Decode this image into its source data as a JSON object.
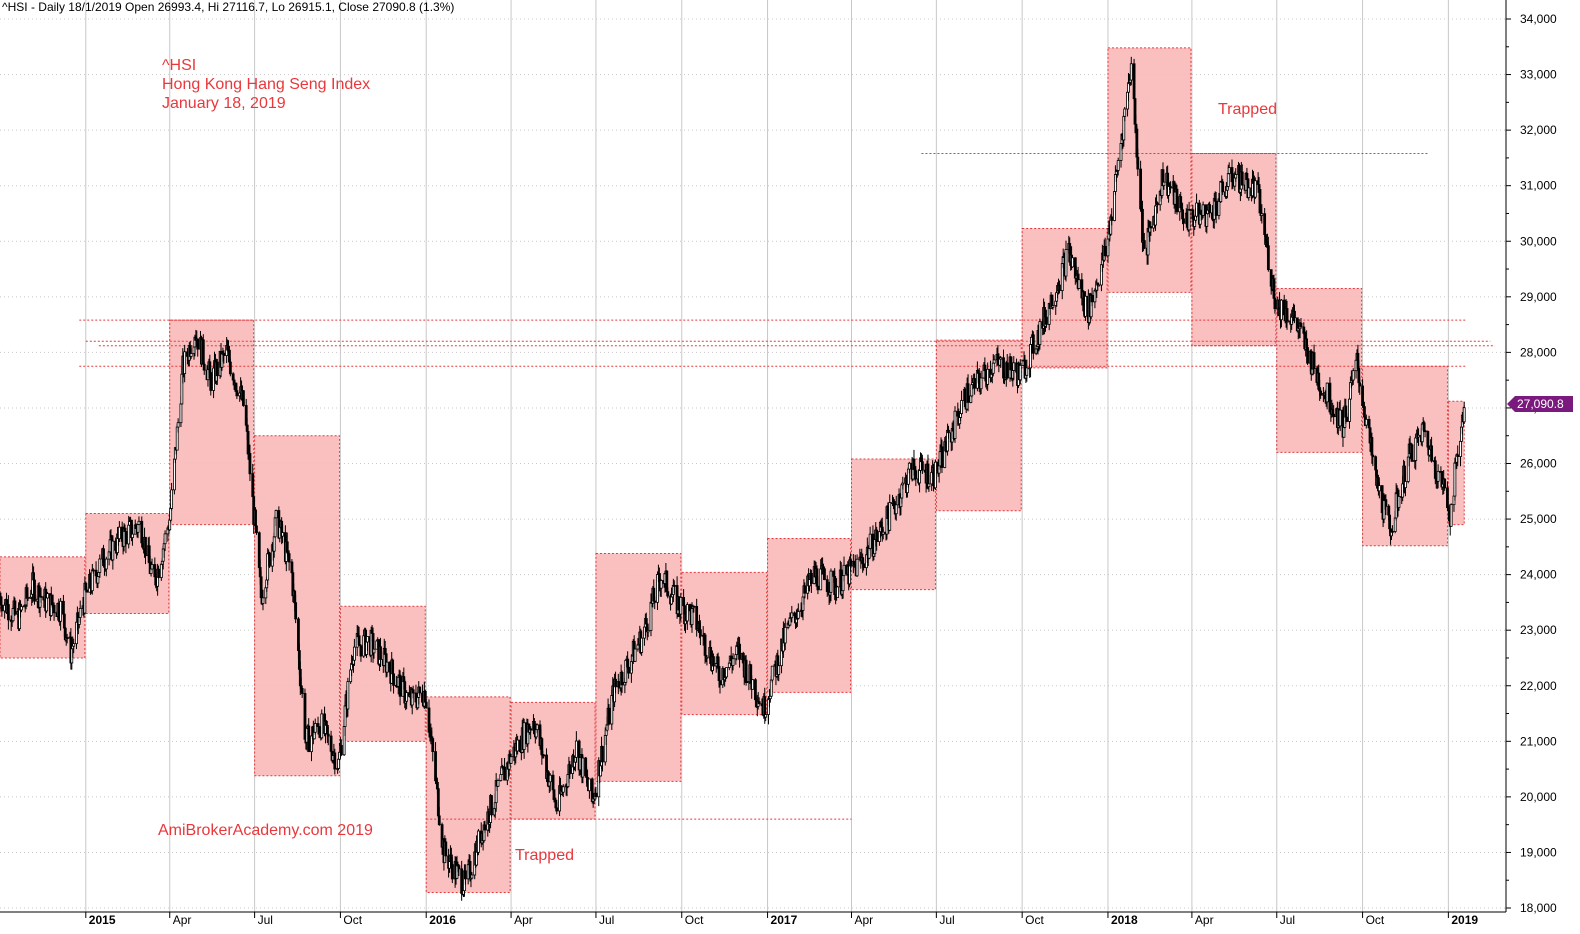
{
  "header": {
    "text": "^HSI - Daily 18/1/2019 Open 26993.4, Hi 27116.7, Lo 26915.1, Close 27090.8 (1.3%)"
  },
  "annotations": {
    "symbol": "^HSI",
    "name": "Hong Kong Hang Seng Index",
    "date": "January 18, 2019",
    "watermark": "AmiBrokerAcademy.com  2019",
    "trapped_top": "Trapped",
    "trapped_bottom": "Trapped"
  },
  "last_price_label": "27,090.8",
  "colors": {
    "box_fill": "#f9b8b8",
    "box_border": "#e8383c",
    "line": "#e8383c",
    "candle": "#000000",
    "grid": "#c8c8c8",
    "price_tag": "#7b1a7e",
    "annotation": "#e8383c"
  },
  "chart_data": {
    "type": "line",
    "subtype": "candlestick-with-range-boxes",
    "ylim": [
      18000,
      34200
    ],
    "y_ticks": [
      "18,000",
      "19,000",
      "20,000",
      "21,000",
      "22,000",
      "23,000",
      "24,000",
      "25,000",
      "26,000",
      "27,000",
      "28,000",
      "29,000",
      "30,000",
      "31,000",
      "32,000",
      "33,000",
      "34,000"
    ],
    "x_ticks": [
      {
        "label": "2015",
        "bold": true
      },
      {
        "label": "Apr",
        "bold": false
      },
      {
        "label": "Jul",
        "bold": false
      },
      {
        "label": "Oct",
        "bold": false
      },
      {
        "label": "2016",
        "bold": true
      },
      {
        "label": "Apr",
        "bold": false
      },
      {
        "label": "Jul",
        "bold": false
      },
      {
        "label": "Oct",
        "bold": false
      },
      {
        "label": "2017",
        "bold": true
      },
      {
        "label": "Apr",
        "bold": false
      },
      {
        "label": "Jul",
        "bold": false
      },
      {
        "label": "Oct",
        "bold": false
      },
      {
        "label": "2018",
        "bold": true
      },
      {
        "label": "Apr",
        "bold": false
      },
      {
        "label": "Jul",
        "bold": false
      },
      {
        "label": "Oct",
        "bold": false
      },
      {
        "label": "2019",
        "bold": true
      }
    ],
    "x_start": "2014-10-01",
    "x_end": "2019-02-20",
    "tick_dates": [
      "2015-01-01",
      "2015-04-01",
      "2015-07-01",
      "2015-10-01",
      "2016-01-01",
      "2016-04-01",
      "2016-07-01",
      "2016-10-01",
      "2017-01-01",
      "2017-04-01",
      "2017-07-01",
      "2017-10-01",
      "2018-01-01",
      "2018-04-01",
      "2018-07-01",
      "2018-10-01",
      "2019-01-01"
    ],
    "quarter_boxes": [
      {
        "from": "2014-10-01",
        "to": "2014-12-31",
        "low": 22500,
        "high": 24320
      },
      {
        "from": "2015-01-01",
        "to": "2015-03-31",
        "low": 23300,
        "high": 25100
      },
      {
        "from": "2015-04-01",
        "to": "2015-06-30",
        "low": 24900,
        "high": 28580
      },
      {
        "from": "2015-07-01",
        "to": "2015-09-30",
        "low": 20380,
        "high": 26500
      },
      {
        "from": "2015-10-01",
        "to": "2015-12-31",
        "low": 21000,
        "high": 23430
      },
      {
        "from": "2016-01-01",
        "to": "2016-03-31",
        "low": 18280,
        "high": 21800
      },
      {
        "from": "2016-04-01",
        "to": "2016-06-30",
        "low": 19600,
        "high": 21700
      },
      {
        "from": "2016-07-01",
        "to": "2016-09-30",
        "low": 20280,
        "high": 24380
      },
      {
        "from": "2016-10-01",
        "to": "2016-12-31",
        "low": 21480,
        "high": 24040
      },
      {
        "from": "2017-01-01",
        "to": "2017-03-31",
        "low": 21880,
        "high": 24650
      },
      {
        "from": "2017-04-01",
        "to": "2017-06-30",
        "low": 23730,
        "high": 26080
      },
      {
        "from": "2017-07-01",
        "to": "2017-09-30",
        "low": 25150,
        "high": 28220
      },
      {
        "from": "2017-10-01",
        "to": "2017-12-31",
        "low": 27720,
        "high": 30230
      },
      {
        "from": "2018-01-01",
        "to": "2018-03-31",
        "low": 29080,
        "high": 33480
      },
      {
        "from": "2018-04-01",
        "to": "2018-06-30",
        "low": 28120,
        "high": 31580
      },
      {
        "from": "2018-07-01",
        "to": "2018-09-30",
        "low": 26200,
        "high": 29150
      },
      {
        "from": "2018-10-01",
        "to": "2018-12-31",
        "low": 24520,
        "high": 27750
      },
      {
        "from": "2019-01-01",
        "to": "2019-01-18",
        "low": 24900,
        "high": 27120
      }
    ],
    "h_lines": [
      {
        "from": "2014-12-25",
        "to": "2019-01-20",
        "y": 28580
      },
      {
        "from": "2014-12-25",
        "to": "2019-01-20",
        "y": 27750
      },
      {
        "from": "2015-01-01",
        "to": "2019-02-15",
        "y": 28200
      },
      {
        "from": "2015-01-15",
        "to": "2019-02-20",
        "y": 28120
      },
      {
        "from": "2016-01-01",
        "to": "2017-04-01",
        "y": 19600
      },
      {
        "from": "2017-06-15",
        "to": "2018-12-10",
        "y": 31580
      }
    ],
    "price_path": [
      {
        "date": "2014-10-01",
        "value": 23600
      },
      {
        "date": "2014-10-20",
        "value": 23200
      },
      {
        "date": "2014-11-05",
        "value": 23800
      },
      {
        "date": "2014-11-20",
        "value": 23500
      },
      {
        "date": "2014-12-05",
        "value": 23400
      },
      {
        "date": "2014-12-16",
        "value": 22600
      },
      {
        "date": "2014-12-31",
        "value": 23600
      },
      {
        "date": "2015-01-20",
        "value": 24300
      },
      {
        "date": "2015-02-10",
        "value": 24700
      },
      {
        "date": "2015-03-01",
        "value": 24900
      },
      {
        "date": "2015-03-15",
        "value": 23800
      },
      {
        "date": "2015-04-01",
        "value": 25000
      },
      {
        "date": "2015-04-15",
        "value": 27700
      },
      {
        "date": "2015-04-28",
        "value": 28400
      },
      {
        "date": "2015-05-15",
        "value": 27500
      },
      {
        "date": "2015-06-01",
        "value": 28000
      },
      {
        "date": "2015-06-20",
        "value": 27000
      },
      {
        "date": "2015-07-08",
        "value": 23600
      },
      {
        "date": "2015-07-25",
        "value": 25000
      },
      {
        "date": "2015-08-10",
        "value": 24000
      },
      {
        "date": "2015-08-25",
        "value": 21000
      },
      {
        "date": "2015-09-10",
        "value": 21300
      },
      {
        "date": "2015-09-29",
        "value": 20600
      },
      {
        "date": "2015-10-15",
        "value": 22700
      },
      {
        "date": "2015-11-01",
        "value": 22800
      },
      {
        "date": "2015-11-20",
        "value": 22400
      },
      {
        "date": "2015-12-15",
        "value": 21700
      },
      {
        "date": "2015-12-31",
        "value": 21900
      },
      {
        "date": "2016-01-20",
        "value": 19000
      },
      {
        "date": "2016-02-12",
        "value": 18400
      },
      {
        "date": "2016-03-01",
        "value": 19400
      },
      {
        "date": "2016-03-31",
        "value": 20700
      },
      {
        "date": "2016-04-25",
        "value": 21400
      },
      {
        "date": "2016-05-20",
        "value": 19800
      },
      {
        "date": "2016-06-10",
        "value": 20900
      },
      {
        "date": "2016-06-27",
        "value": 19900
      },
      {
        "date": "2016-07-20",
        "value": 21900
      },
      {
        "date": "2016-08-20",
        "value": 22900
      },
      {
        "date": "2016-09-09",
        "value": 24000
      },
      {
        "date": "2016-09-25",
        "value": 23500
      },
      {
        "date": "2016-10-15",
        "value": 23200
      },
      {
        "date": "2016-11-10",
        "value": 22200
      },
      {
        "date": "2016-12-01",
        "value": 22600
      },
      {
        "date": "2016-12-28",
        "value": 21600
      },
      {
        "date": "2017-01-20",
        "value": 22900
      },
      {
        "date": "2017-02-20",
        "value": 24000
      },
      {
        "date": "2017-03-15",
        "value": 23800
      },
      {
        "date": "2017-04-10",
        "value": 24200
      },
      {
        "date": "2017-05-10",
        "value": 25000
      },
      {
        "date": "2017-06-05",
        "value": 25900
      },
      {
        "date": "2017-06-30",
        "value": 25800
      },
      {
        "date": "2017-08-01",
        "value": 27200
      },
      {
        "date": "2017-09-01",
        "value": 27800
      },
      {
        "date": "2017-09-30",
        "value": 27600
      },
      {
        "date": "2017-10-20",
        "value": 28400
      },
      {
        "date": "2017-11-20",
        "value": 29800
      },
      {
        "date": "2017-12-10",
        "value": 28700
      },
      {
        "date": "2017-12-31",
        "value": 29900
      },
      {
        "date": "2018-01-26",
        "value": 33200
      },
      {
        "date": "2018-02-09",
        "value": 29700
      },
      {
        "date": "2018-03-01",
        "value": 31200
      },
      {
        "date": "2018-03-25",
        "value": 30400
      },
      {
        "date": "2018-04-20",
        "value": 30500
      },
      {
        "date": "2018-05-15",
        "value": 31200
      },
      {
        "date": "2018-06-10",
        "value": 30900
      },
      {
        "date": "2018-06-30",
        "value": 28900
      },
      {
        "date": "2018-07-20",
        "value": 28600
      },
      {
        "date": "2018-08-15",
        "value": 27500
      },
      {
        "date": "2018-09-10",
        "value": 26700
      },
      {
        "date": "2018-09-25",
        "value": 27800
      },
      {
        "date": "2018-10-15",
        "value": 25700
      },
      {
        "date": "2018-10-30",
        "value": 24800
      },
      {
        "date": "2018-11-20",
        "value": 26100
      },
      {
        "date": "2018-12-05",
        "value": 26600
      },
      {
        "date": "2018-12-28",
        "value": 25500
      },
      {
        "date": "2019-01-03",
        "value": 25100
      },
      {
        "date": "2019-01-18",
        "value": 27090
      }
    ]
  }
}
